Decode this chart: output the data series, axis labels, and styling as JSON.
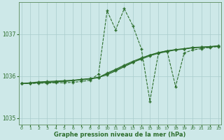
{
  "xlabel": "Graphe pression niveau de la mer (hPa)",
  "bg_color": "#cde8e8",
  "grid_color": "#aacccc",
  "line_color": "#2d6e2d",
  "x_values": [
    0,
    1,
    2,
    3,
    4,
    5,
    6,
    7,
    8,
    9,
    10,
    11,
    12,
    13,
    14,
    15,
    16,
    17,
    18,
    19,
    20,
    21,
    22,
    23
  ],
  "series1": [
    1035.82,
    1035.82,
    1035.83,
    1035.83,
    1035.84,
    1035.84,
    1035.85,
    1035.87,
    1035.9,
    1036.05,
    1037.55,
    1037.1,
    1037.6,
    1037.2,
    1036.65,
    1035.4,
    1036.55,
    1036.6,
    1035.75,
    1036.55,
    1036.62,
    1036.65,
    1036.68,
    1036.7
  ],
  "series2": [
    1035.82,
    1035.84,
    1035.86,
    1035.87,
    1035.88,
    1035.89,
    1035.9,
    1035.92,
    1035.94,
    1035.97,
    1036.03,
    1036.12,
    1036.22,
    1036.32,
    1036.42,
    1036.5,
    1036.56,
    1036.6,
    1036.63,
    1036.65,
    1036.68,
    1036.69,
    1036.7,
    1036.72
  ],
  "series3": [
    1035.82,
    1035.83,
    1035.84,
    1035.85,
    1035.86,
    1035.87,
    1035.89,
    1035.91,
    1035.93,
    1035.96,
    1036.05,
    1036.14,
    1036.24,
    1036.33,
    1036.4,
    1036.48,
    1036.54,
    1036.58,
    1036.62,
    1036.64,
    1036.67,
    1036.68,
    1036.69,
    1036.71
  ],
  "series4": [
    1035.82,
    1035.83,
    1035.845,
    1035.855,
    1035.865,
    1035.875,
    1035.895,
    1035.915,
    1035.935,
    1035.965,
    1036.07,
    1036.16,
    1036.26,
    1036.35,
    1036.43,
    1036.5,
    1036.55,
    1036.595,
    1036.625,
    1036.645,
    1036.675,
    1036.685,
    1036.695,
    1036.715
  ],
  "ylim": [
    1034.85,
    1037.75
  ],
  "yticks": [
    1035,
    1036,
    1037
  ],
  "xticks": [
    0,
    1,
    2,
    3,
    4,
    5,
    6,
    7,
    8,
    9,
    10,
    11,
    12,
    13,
    14,
    15,
    16,
    17,
    18,
    19,
    20,
    21,
    22,
    23
  ],
  "markersize": 3.5,
  "linewidth": 0.8
}
